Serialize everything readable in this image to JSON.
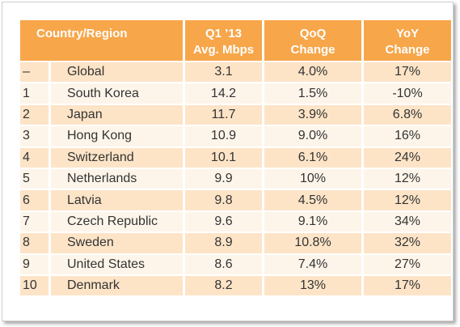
{
  "table": {
    "headers": {
      "country": "Country/Region",
      "mbps_line1": "Q1 ’13",
      "mbps_line2": "Avg. Mbps",
      "qoq_line1": "QoQ",
      "qoq_line2": "Change",
      "yoy_line1": "YoY",
      "yoy_line2": "Change"
    },
    "rows": [
      {
        "rank": "–",
        "country": "Global",
        "mbps": "3.1",
        "qoq": "4.0%",
        "yoy": "17%"
      },
      {
        "rank": "1",
        "country": "South Korea",
        "mbps": "14.2",
        "qoq": "1.5%",
        "yoy": "-10%"
      },
      {
        "rank": "2",
        "country": "Japan",
        "mbps": "11.7",
        "qoq": "3.9%",
        "yoy": "6.8%"
      },
      {
        "rank": "3",
        "country": "Hong Kong",
        "mbps": "10.9",
        "qoq": "9.0%",
        "yoy": "16%"
      },
      {
        "rank": "4",
        "country": "Switzerland",
        "mbps": "10.1",
        "qoq": "6.1%",
        "yoy": "24%"
      },
      {
        "rank": "5",
        "country": "Netherlands",
        "mbps": "9.9",
        "qoq": "10%",
        "yoy": "12%"
      },
      {
        "rank": "6",
        "country": "Latvia",
        "mbps": "9.8",
        "qoq": "4.5%",
        "yoy": "12%"
      },
      {
        "rank": "7",
        "country": "Czech Republic",
        "mbps": "9.6",
        "qoq": "9.1%",
        "yoy": "34%"
      },
      {
        "rank": "8",
        "country": "Sweden",
        "mbps": "8.9",
        "qoq": "10.8%",
        "yoy": "32%"
      },
      {
        "rank": "9",
        "country": "United States",
        "mbps": "8.6",
        "qoq": "7.4%",
        "yoy": "27%"
      },
      {
        "rank": "10",
        "country": "Denmark",
        "mbps": "8.2",
        "qoq": "13%",
        "yoy": "17%"
      }
    ],
    "colors": {
      "header_bg": "#f7a64a",
      "row_dark": "#fde4c7",
      "row_light": "#fef5ea",
      "text": "#333333"
    }
  }
}
